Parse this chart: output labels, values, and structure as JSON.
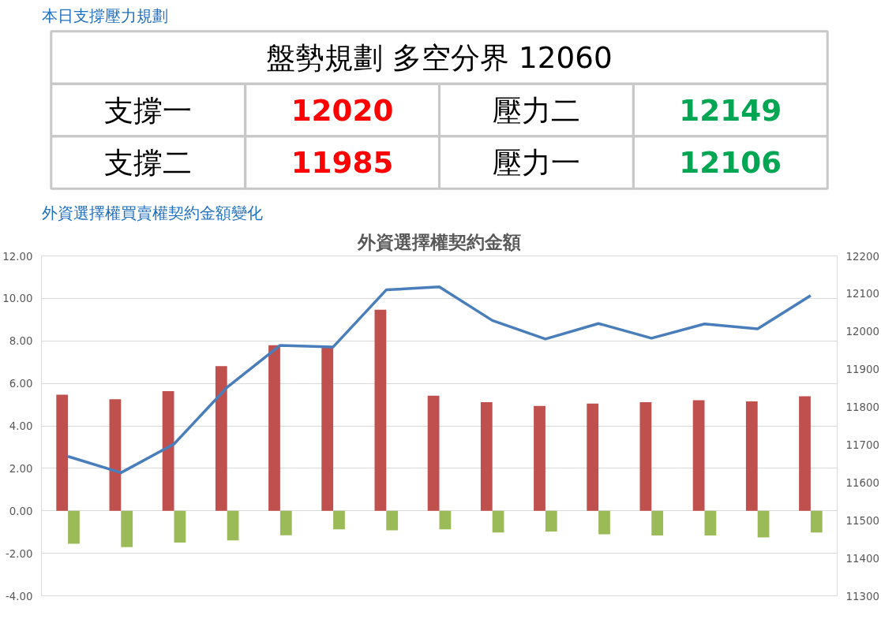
{
  "chart_data": [
    {
      "type": "other",
      "title": "本日支撐壓力規劃",
      "subtitle": "盤勢規劃 多空分界 12060",
      "annotations": [
        "支撐一",
        "12020",
        "壓力二",
        "12149",
        "支撐二",
        "11985",
        "壓力一",
        "12106"
      ],
      "colors": [
        "#000000",
        "#ff0000",
        "#000000",
        "#00a651",
        "#000000",
        "#ff0000",
        "#000000",
        "#00a651"
      ]
    },
    {
      "type": "bar",
      "title": "外資選擇權買賣權契約金額變化",
      "subtitle": "外資選擇權契約金額",
      "categories": [
        null,
        null,
        null,
        null,
        null,
        null,
        null,
        null,
        null,
        null,
        null,
        null,
        null,
        null,
        null
      ],
      "series": [
        {
          "type": "bar",
          "color": "#c0504d",
          "values": [
            5.47,
            5.25,
            5.63,
            6.81,
            7.8,
            7.68,
            9.47,
            5.42,
            5.11,
            4.94,
            5.05,
            5.11,
            5.21,
            5.15,
            5.39
          ]
        },
        {
          "type": "bar",
          "color": "#9bbb59",
          "values": [
            -1.55,
            -1.71,
            -1.49,
            -1.39,
            -1.15,
            -0.87,
            -0.92,
            -0.87,
            -1.02,
            -0.97,
            -1.1,
            -1.16,
            -1.16,
            -1.25,
            -1.02
          ]
        },
        {
          "type": "line",
          "axis": "y2",
          "color": "#4a7ebb",
          "values": [
            11669,
            11626,
            11702,
            11852,
            11963,
            11959,
            12110,
            12118,
            12029,
            11980,
            12021,
            11982,
            12020,
            12007,
            12095
          ]
        }
      ],
      "ylim": [
        -4,
        12
      ],
      "yticks": [
        {
          "value": -4,
          "label": "-4.00"
        },
        {
          "value": -2,
          "label": "-2.00"
        },
        {
          "value": 0,
          "label": "0.00"
        },
        {
          "value": 2,
          "label": "2.00"
        },
        {
          "value": 4,
          "label": "4.00"
        },
        {
          "value": 6,
          "label": "6.00"
        },
        {
          "value": 8,
          "label": "8.00"
        },
        {
          "value": 10,
          "label": "10.00"
        },
        {
          "value": 12,
          "label": "12.00"
        }
      ],
      "y2lim": [
        11300,
        12200
      ],
      "y2ticks": [
        11300,
        11400,
        11500,
        11600,
        11700,
        11800,
        11900,
        12000,
        12100,
        12200
      ],
      "grid": "y"
    }
  ]
}
